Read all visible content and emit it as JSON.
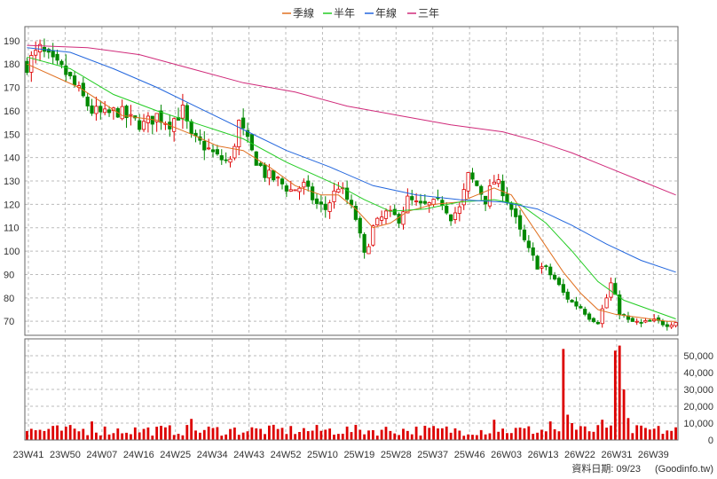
{
  "chart_data": {
    "type": "candlestick-with-volume",
    "legend": [
      {
        "name": "季線",
        "color": "#e07020"
      },
      {
        "name": "半年",
        "color": "#22cc22"
      },
      {
        "name": "年線",
        "color": "#2266dd"
      },
      {
        "name": "三年",
        "color": "#d02a7a"
      }
    ],
    "colors": {
      "up": "#dd0000",
      "down": "#008800",
      "volume": "#dd0000",
      "grid": "#bbbbbb"
    },
    "x_tick_labels": [
      "23W41",
      "23W50",
      "24W07",
      "24W16",
      "24W25",
      "24W34",
      "24W43",
      "24W52",
      "25W10",
      "25W19",
      "25W28",
      "25W37",
      "25W46",
      "26W03",
      "26W13",
      "26W22",
      "26W31",
      "26W39"
    ],
    "price_axis": {
      "min": 64,
      "max": 196,
      "ticks": [
        70,
        80,
        90,
        100,
        110,
        120,
        130,
        140,
        150,
        160,
        170,
        180,
        190
      ]
    },
    "volume_axis": {
      "min": 0,
      "max": 60000,
      "ticks": [
        0,
        10000,
        20000,
        30000,
        40000,
        50000
      ],
      "tick_labels": [
        "0",
        "10,000",
        "20,000",
        "30,000",
        "40,000",
        "50,000"
      ]
    },
    "close_anchors": [
      {
        "w": 0,
        "v": 180
      },
      {
        "w": 3,
        "v": 186
      },
      {
        "w": 6,
        "v": 180
      },
      {
        "w": 9,
        "v": 176
      },
      {
        "w": 12,
        "v": 168
      },
      {
        "w": 15,
        "v": 160
      },
      {
        "w": 18,
        "v": 158
      },
      {
        "w": 21,
        "v": 160
      },
      {
        "w": 24,
        "v": 156
      },
      {
        "w": 27,
        "v": 154
      },
      {
        "w": 30,
        "v": 158
      },
      {
        "w": 33,
        "v": 155
      },
      {
        "w": 36,
        "v": 160
      },
      {
        "w": 38,
        "v": 148
      },
      {
        "w": 41,
        "v": 145
      },
      {
        "w": 44,
        "v": 140
      },
      {
        "w": 47,
        "v": 138
      },
      {
        "w": 49,
        "v": 155
      },
      {
        "w": 52,
        "v": 142
      },
      {
        "w": 55,
        "v": 133
      },
      {
        "w": 58,
        "v": 130
      },
      {
        "w": 61,
        "v": 126
      },
      {
        "w": 64,
        "v": 128
      },
      {
        "w": 67,
        "v": 120
      },
      {
        "w": 69,
        "v": 118
      },
      {
        "w": 72,
        "v": 128
      },
      {
        "w": 74,
        "v": 122
      },
      {
        "w": 76,
        "v": 114
      },
      {
        "w": 78,
        "v": 98
      },
      {
        "w": 80,
        "v": 110
      },
      {
        "w": 83,
        "v": 116
      },
      {
        "w": 86,
        "v": 114
      },
      {
        "w": 88,
        "v": 122
      },
      {
        "w": 91,
        "v": 119
      },
      {
        "w": 94,
        "v": 120
      },
      {
        "w": 96,
        "v": 121
      },
      {
        "w": 98,
        "v": 115
      },
      {
        "w": 100,
        "v": 118
      },
      {
        "w": 102,
        "v": 132
      },
      {
        "w": 104,
        "v": 128
      },
      {
        "w": 106,
        "v": 122
      },
      {
        "w": 108,
        "v": 130
      },
      {
        "w": 110,
        "v": 126
      },
      {
        "w": 112,
        "v": 118
      },
      {
        "w": 114,
        "v": 108
      },
      {
        "w": 116,
        "v": 100
      },
      {
        "w": 118,
        "v": 94
      },
      {
        "w": 120,
        "v": 92
      },
      {
        "w": 122,
        "v": 88
      },
      {
        "w": 124,
        "v": 82
      },
      {
        "w": 126,
        "v": 78
      },
      {
        "w": 128,
        "v": 76
      },
      {
        "w": 130,
        "v": 72
      },
      {
        "w": 132,
        "v": 70
      },
      {
        "w": 134,
        "v": 80
      },
      {
        "w": 135,
        "v": 86
      },
      {
        "w": 137,
        "v": 74
      },
      {
        "w": 139,
        "v": 70
      },
      {
        "w": 142,
        "v": 69
      },
      {
        "w": 145,
        "v": 70
      },
      {
        "w": 148,
        "v": 69
      },
      {
        "w": 150,
        "v": 70
      }
    ],
    "ma_quarter": [
      {
        "w": 0,
        "v": 180
      },
      {
        "w": 12,
        "v": 170
      },
      {
        "w": 22,
        "v": 158
      },
      {
        "w": 30,
        "v": 156
      },
      {
        "w": 38,
        "v": 150
      },
      {
        "w": 44,
        "v": 145
      },
      {
        "w": 50,
        "v": 143
      },
      {
        "w": 56,
        "v": 136
      },
      {
        "w": 62,
        "v": 128
      },
      {
        "w": 68,
        "v": 124
      },
      {
        "w": 72,
        "v": 124
      },
      {
        "w": 76,
        "v": 118
      },
      {
        "w": 80,
        "v": 110
      },
      {
        "w": 84,
        "v": 112
      },
      {
        "w": 88,
        "v": 117
      },
      {
        "w": 94,
        "v": 120
      },
      {
        "w": 100,
        "v": 121
      },
      {
        "w": 104,
        "v": 124
      },
      {
        "w": 108,
        "v": 127
      },
      {
        "w": 112,
        "v": 124
      },
      {
        "w": 116,
        "v": 113
      },
      {
        "w": 120,
        "v": 102
      },
      {
        "w": 124,
        "v": 91
      },
      {
        "w": 128,
        "v": 82
      },
      {
        "w": 132,
        "v": 75
      },
      {
        "w": 136,
        "v": 73
      },
      {
        "w": 140,
        "v": 72
      },
      {
        "w": 144,
        "v": 71
      },
      {
        "w": 148,
        "v": 70
      },
      {
        "w": 150,
        "v": 70
      }
    ],
    "ma_half": [
      {
        "w": 0,
        "v": 183
      },
      {
        "w": 10,
        "v": 178
      },
      {
        "w": 20,
        "v": 167
      },
      {
        "w": 30,
        "v": 160
      },
      {
        "w": 40,
        "v": 154
      },
      {
        "w": 50,
        "v": 148
      },
      {
        "w": 60,
        "v": 138
      },
      {
        "w": 66,
        "v": 133
      },
      {
        "w": 72,
        "v": 128
      },
      {
        "w": 78,
        "v": 122
      },
      {
        "w": 84,
        "v": 117
      },
      {
        "w": 92,
        "v": 118
      },
      {
        "w": 100,
        "v": 121
      },
      {
        "w": 108,
        "v": 122
      },
      {
        "w": 114,
        "v": 120
      },
      {
        "w": 120,
        "v": 112
      },
      {
        "w": 126,
        "v": 100
      },
      {
        "w": 132,
        "v": 87
      },
      {
        "w": 138,
        "v": 79
      },
      {
        "w": 144,
        "v": 75
      },
      {
        "w": 150,
        "v": 71
      }
    ],
    "ma_year": [
      {
        "w": 0,
        "v": 187
      },
      {
        "w": 10,
        "v": 185
      },
      {
        "w": 20,
        "v": 178
      },
      {
        "w": 30,
        "v": 170
      },
      {
        "w": 40,
        "v": 161
      },
      {
        "w": 50,
        "v": 152
      },
      {
        "w": 60,
        "v": 143
      },
      {
        "w": 70,
        "v": 136
      },
      {
        "w": 80,
        "v": 128
      },
      {
        "w": 90,
        "v": 124
      },
      {
        "w": 100,
        "v": 122
      },
      {
        "w": 110,
        "v": 121
      },
      {
        "w": 118,
        "v": 118
      },
      {
        "w": 126,
        "v": 111
      },
      {
        "w": 134,
        "v": 103
      },
      {
        "w": 142,
        "v": 96
      },
      {
        "w": 150,
        "v": 91
      }
    ],
    "ma_three_year": [
      {
        "w": 0,
        "v": 188
      },
      {
        "w": 14,
        "v": 187
      },
      {
        "w": 26,
        "v": 184
      },
      {
        "w": 38,
        "v": 178
      },
      {
        "w": 50,
        "v": 172
      },
      {
        "w": 62,
        "v": 168
      },
      {
        "w": 74,
        "v": 162
      },
      {
        "w": 86,
        "v": 158
      },
      {
        "w": 98,
        "v": 154
      },
      {
        "w": 110,
        "v": 151
      },
      {
        "w": 118,
        "v": 147
      },
      {
        "w": 126,
        "v": 142
      },
      {
        "w": 134,
        "v": 136
      },
      {
        "w": 142,
        "v": 130
      },
      {
        "w": 150,
        "v": 124
      }
    ],
    "volume_spikes": [
      {
        "w": 15,
        "v": 11000
      },
      {
        "w": 38,
        "v": 12500
      },
      {
        "w": 108,
        "v": 12000
      },
      {
        "w": 121,
        "v": 11000
      },
      {
        "w": 124,
        "v": 54000
      },
      {
        "w": 125,
        "v": 15000
      },
      {
        "w": 126,
        "v": 10000
      },
      {
        "w": 133,
        "v": 12000
      },
      {
        "w": 136,
        "v": 53000
      },
      {
        "w": 137,
        "v": 56000
      },
      {
        "w": 138,
        "v": 30000
      },
      {
        "w": 139,
        "v": 13000
      }
    ]
  },
  "footer": {
    "date_label": "資料日期: 09/23",
    "source": "(Goodinfo.tw)"
  }
}
